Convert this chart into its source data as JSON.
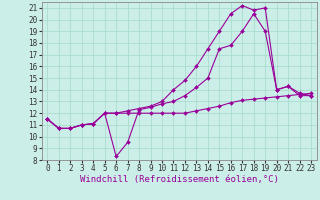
{
  "xlabel": "Windchill (Refroidissement éolien,°C)",
  "bg_color": "#cceee8",
  "line_color": "#990099",
  "grid_color": "#aaddcc",
  "xlim": [
    -0.5,
    23.5
  ],
  "ylim": [
    8,
    21.5
  ],
  "xticks": [
    0,
    1,
    2,
    3,
    4,
    5,
    6,
    7,
    8,
    9,
    10,
    11,
    12,
    13,
    14,
    15,
    16,
    17,
    18,
    19,
    20,
    21,
    22,
    23
  ],
  "yticks": [
    8,
    9,
    10,
    11,
    12,
    13,
    14,
    15,
    16,
    17,
    18,
    19,
    20,
    21
  ],
  "tick_fontsize": 5.5,
  "label_fontsize": 6.5,
  "s1y": [
    11.5,
    10.7,
    10.7,
    11.0,
    11.1,
    12.0,
    12.0,
    12.0,
    12.0,
    12.0,
    12.0,
    12.0,
    12.0,
    12.2,
    12.4,
    12.6,
    12.9,
    13.1,
    13.2,
    13.3,
    13.4,
    13.5,
    13.6,
    13.7
  ],
  "s2y": [
    11.5,
    10.7,
    10.7,
    11.0,
    11.1,
    12.0,
    8.3,
    9.5,
    12.3,
    12.5,
    12.8,
    13.0,
    13.5,
    14.2,
    15.0,
    17.5,
    17.8,
    19.0,
    20.5,
    19.0,
    14.0,
    14.3,
    13.5,
    13.5
  ],
  "s3y": [
    11.5,
    10.7,
    10.7,
    11.0,
    11.1,
    12.0,
    12.0,
    12.2,
    12.4,
    12.6,
    13.0,
    14.0,
    14.8,
    16.0,
    17.5,
    19.0,
    20.5,
    21.2,
    20.8,
    21.0,
    14.0,
    14.3,
    13.7,
    13.5
  ]
}
